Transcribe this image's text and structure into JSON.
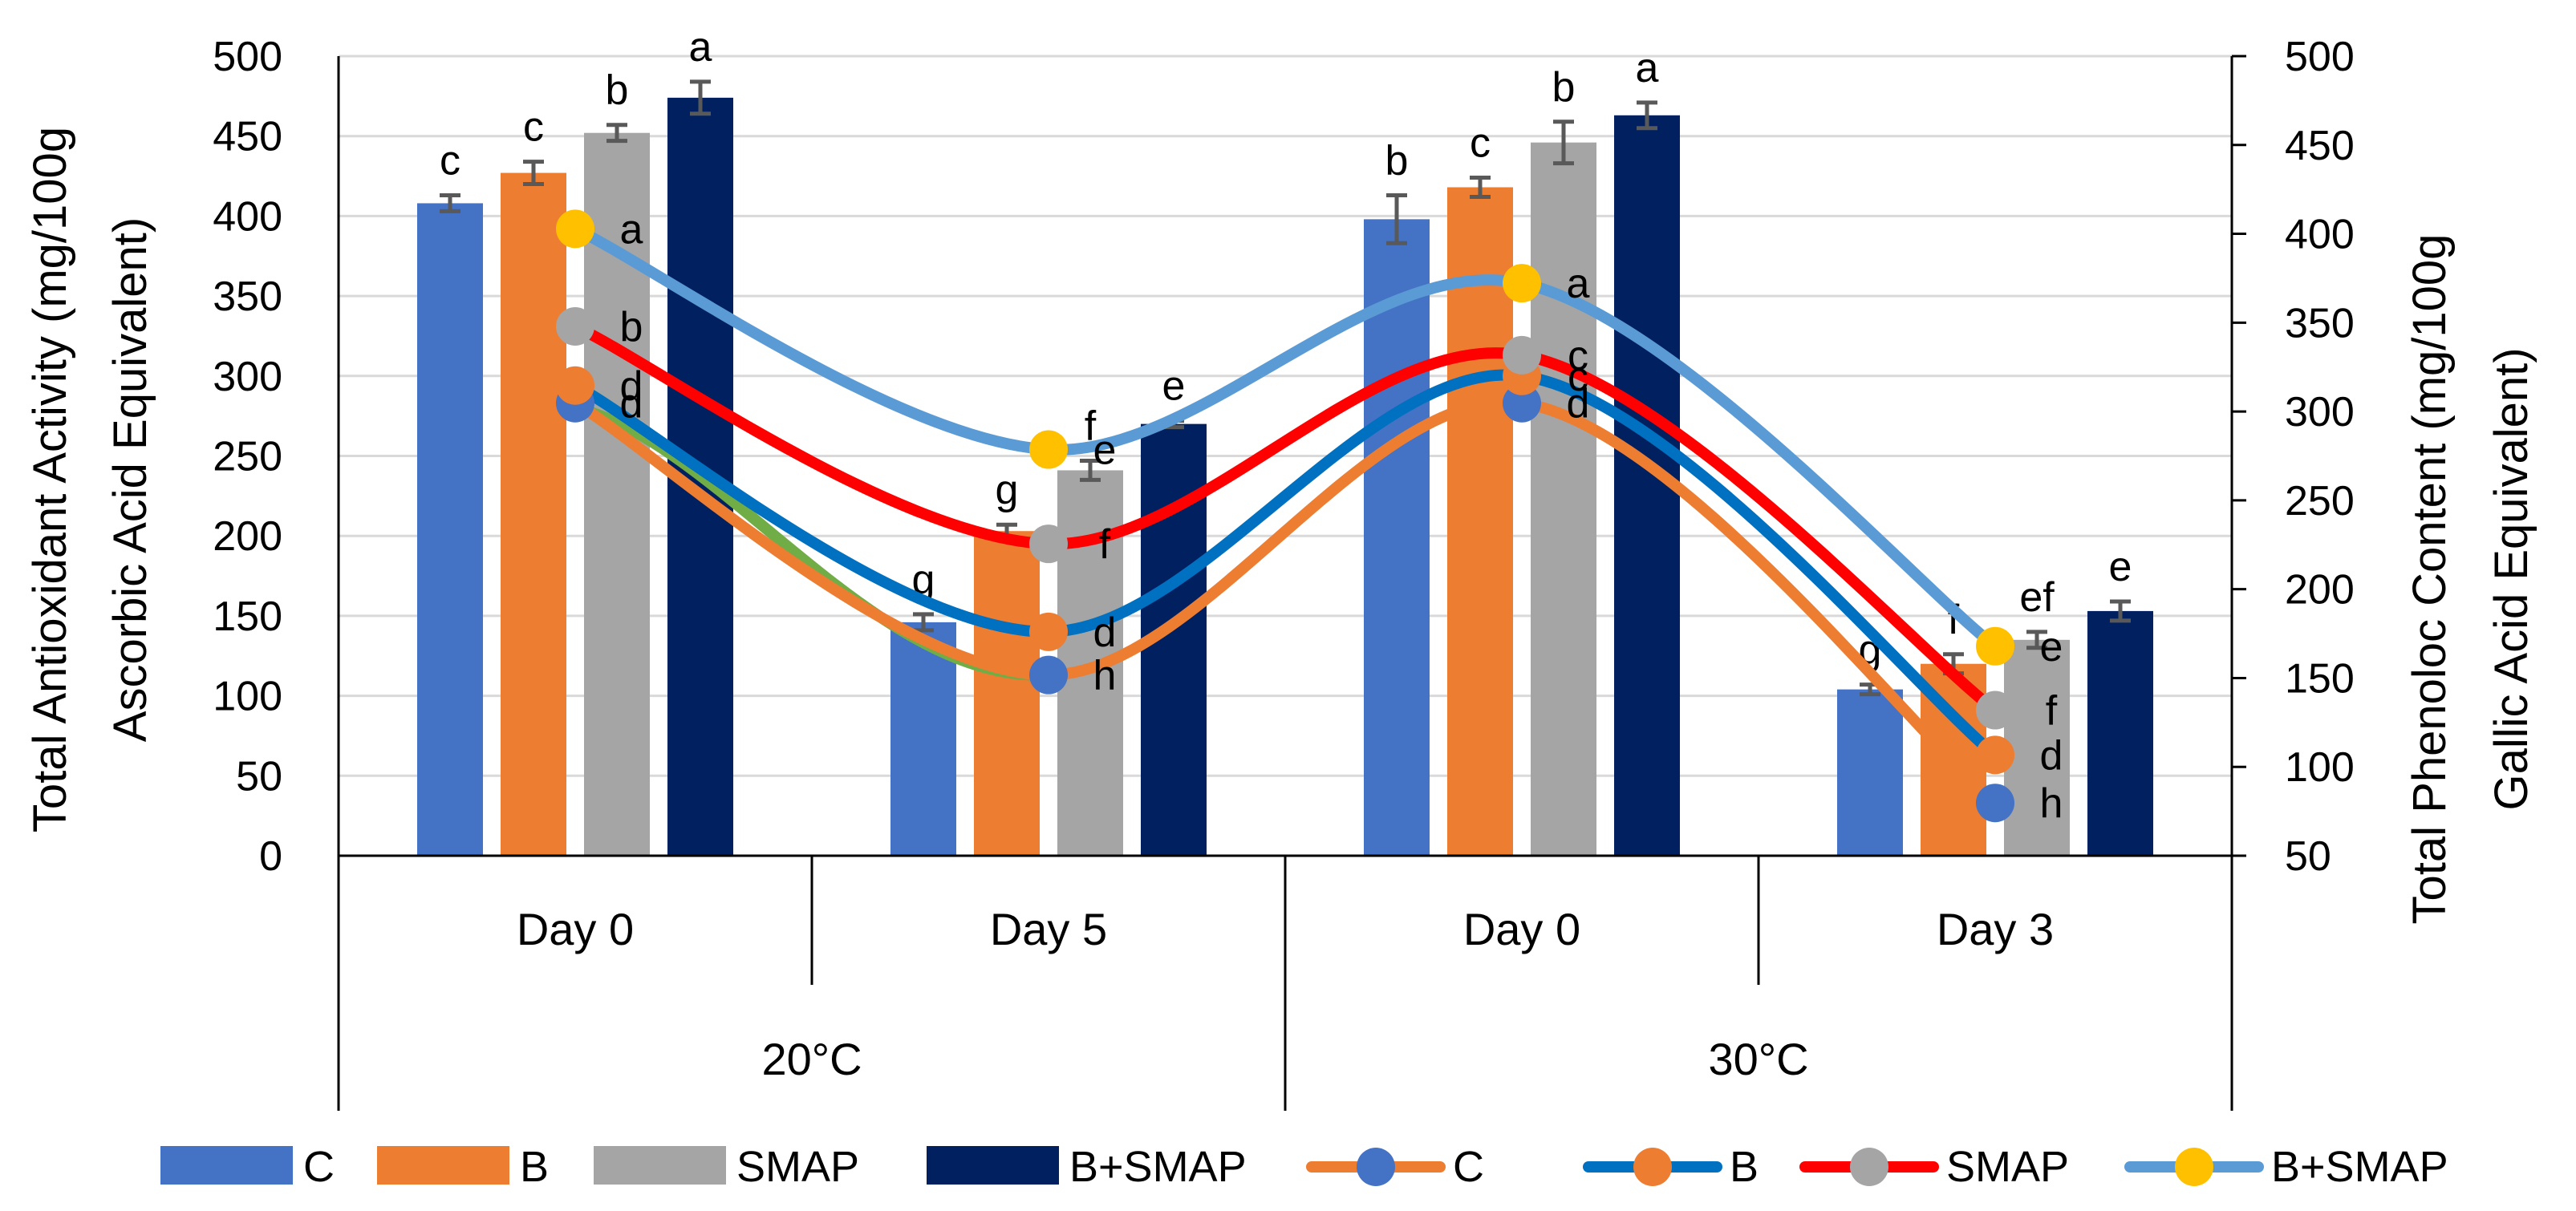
{
  "chart_data": {
    "type": "bar",
    "left_axis": {
      "title_line1": "Total Antioxidant Activity (mg/100g",
      "title_line2": "Ascorbic Acid Equivalent)",
      "ylim": [
        0,
        500
      ],
      "ticks": [
        0,
        50,
        100,
        150,
        200,
        250,
        300,
        350,
        400,
        450,
        500
      ]
    },
    "right_axis": {
      "title_line1": "Total Phenoloc Content (mg/100g",
      "title_line2": "Gallic Acid Equivalent)",
      "ylim": [
        50,
        500
      ],
      "ticks": [
        50,
        100,
        150,
        200,
        250,
        300,
        350,
        400,
        450,
        500
      ]
    },
    "categories": [
      "Day 0",
      "Day 5",
      "Day 0",
      "Day 3"
    ],
    "groups": [
      {
        "label": "20°C",
        "span": [
          0,
          1
        ]
      },
      {
        "label": "30°C",
        "span": [
          2,
          3
        ]
      }
    ],
    "bar_series": [
      {
        "name": "C",
        "color": "#4472C4",
        "values": [
          408,
          146,
          398,
          104
        ],
        "errors": [
          5,
          5,
          15,
          3
        ],
        "letters": [
          "c",
          "g",
          "b",
          "g"
        ]
      },
      {
        "name": "B",
        "color": "#ED7D31",
        "values": [
          427,
          203,
          418,
          120
        ],
        "errors": [
          7,
          4,
          6,
          6
        ],
        "letters": [
          "c",
          "g",
          "c",
          "f"
        ]
      },
      {
        "name": "SMAP",
        "color": "#A5A5A5",
        "values": [
          452,
          241,
          446,
          135
        ],
        "errors": [
          5,
          6,
          13,
          5
        ],
        "letters": [
          "b",
          "f",
          "b",
          "ef"
        ]
      },
      {
        "name": "B+SMAP",
        "color": "#002060",
        "values": [
          474,
          270,
          463,
          153
        ],
        "errors": [
          10,
          2,
          8,
          6
        ],
        "letters": [
          "a",
          "e",
          "a",
          "e"
        ]
      }
    ],
    "line_series": [
      {
        "name": "C",
        "line_color": "#ED7D31",
        "marker_color": "#4472C4",
        "values": [
          283,
          113,
          283,
          33
        ],
        "letters": [
          "d",
          "h",
          "d",
          "h"
        ]
      },
      {
        "name": "B",
        "line_color": "#0070C0",
        "marker_color": "#ED7D31",
        "values": [
          294,
          140,
          300,
          63
        ],
        "letters": [
          "d",
          "d",
          "c",
          "d"
        ]
      },
      {
        "name": "SMAP",
        "line_color": "#FF0000",
        "marker_color": "#A5A5A5",
        "values": [
          331,
          195,
          313,
          91
        ],
        "letters": [
          "b",
          "f",
          "c",
          "f"
        ]
      },
      {
        "name": "B+SMAP",
        "line_color": "#5B9BD5",
        "marker_color": "#FFC000",
        "values": [
          392,
          254,
          358,
          131
        ],
        "letters": [
          "a",
          "e",
          "a",
          "e"
        ]
      }
    ],
    "extra_segment": {
      "line_color": "#70AD47",
      "from_value": 280,
      "to_value": 113
    },
    "legend": {
      "bars": [
        "C",
        "B",
        "SMAP",
        "B+SMAP"
      ],
      "lines": [
        "C",
        "B",
        "SMAP",
        "B+SMAP"
      ]
    },
    "grid": true
  }
}
